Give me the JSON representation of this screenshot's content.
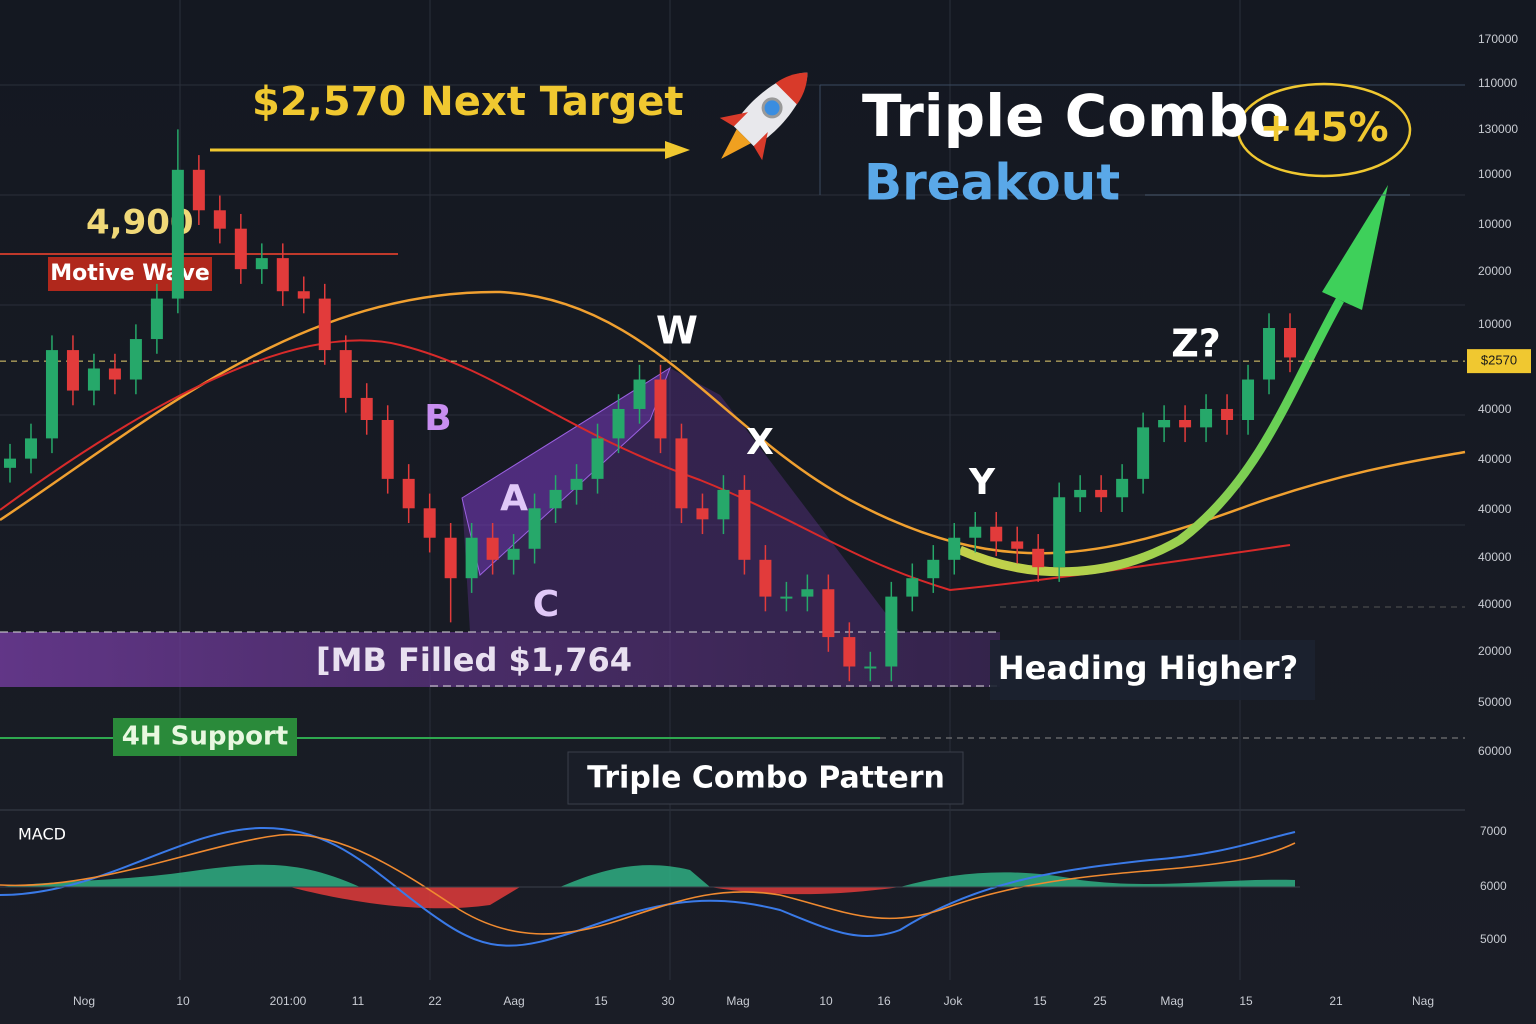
{
  "chart_data": {
    "type": "candlestick",
    "title": "Triple Combo",
    "subtitle": "Breakout",
    "badge": "+45%",
    "annotations": {
      "target": "$2,570 Next Target",
      "level": "4,900",
      "wave": "Motive Wave",
      "w": "W",
      "x": "X",
      "y": "Y",
      "z": "Z?",
      "a": "A",
      "b": "B",
      "c": "C",
      "zone": "[MB Filled $1,764",
      "heading": "Heading Higher?",
      "support": "4H Support",
      "pattern": "Triple Combo Pattern",
      "macd": "MACD"
    },
    "target_line": {
      "value": 2570,
      "label": "$2570"
    },
    "right_axis_labels": [
      "170000",
      "110000",
      "130000",
      "10000",
      "10000",
      "20000",
      "10000",
      "40000",
      "40000",
      "40000",
      "40000",
      "40000",
      "20000",
      "50000",
      "60000"
    ],
    "macd_axis_labels": [
      "7000",
      "6000",
      "5000"
    ],
    "x_labels": [
      "Nog",
      "10",
      "201:00",
      "11",
      "22",
      "Aag",
      "15",
      "30",
      "Mag",
      "10",
      "16",
      "Jok",
      "15",
      "25",
      "Mag",
      "15",
      "21",
      "Nag"
    ],
    "ylim": [
      1350,
      3470
    ],
    "up_color": "#26a86a",
    "down_color": "#e23b3b",
    "open": [
      2280,
      2305,
      2360,
      2600,
      2490,
      2550,
      2520,
      2630,
      2740,
      3090,
      2980,
      2930,
      2820,
      2850,
      2760,
      2740,
      2600,
      2470,
      2410,
      2250,
      2170,
      2090,
      1980,
      2090,
      2030,
      2060,
      2170,
      2220,
      2250,
      2360,
      2440,
      2520,
      2360,
      2170,
      2140,
      2220,
      2030,
      1930,
      1930,
      1950,
      1820,
      1740,
      1740,
      1930,
      1980,
      2030,
      2090,
      2120,
      2080,
      2060,
      2010,
      2200,
      2220,
      2200,
      2250,
      2390,
      2410,
      2390,
      2440,
      2410,
      2520,
      2660
    ],
    "high": [
      2345,
      2400,
      2640,
      2640,
      2590,
      2590,
      2670,
      2780,
      3200,
      3130,
      3020,
      2970,
      2890,
      2890,
      2800,
      2780,
      2640,
      2510,
      2450,
      2290,
      2210,
      2130,
      2130,
      2130,
      2100,
      2210,
      2260,
      2290,
      2400,
      2480,
      2560,
      2560,
      2400,
      2210,
      2260,
      2260,
      2070,
      1970,
      1990,
      1990,
      1860,
      1780,
      1970,
      2020,
      2070,
      2130,
      2160,
      2160,
      2120,
      2100,
      2240,
      2260,
      2260,
      2290,
      2430,
      2450,
      2450,
      2480,
      2480,
      2560,
      2700,
      2700
    ],
    "low": [
      2240,
      2265,
      2320,
      2450,
      2450,
      2480,
      2480,
      2590,
      2700,
      2940,
      2890,
      2780,
      2780,
      2720,
      2700,
      2560,
      2430,
      2370,
      2210,
      2130,
      2050,
      1860,
      1940,
      1990,
      1990,
      2020,
      2130,
      2180,
      2210,
      2320,
      2400,
      2320,
      2130,
      2100,
      2100,
      1990,
      1890,
      1890,
      1890,
      1780,
      1700,
      1700,
      1700,
      1890,
      1940,
      1990,
      2050,
      2040,
      2020,
      1970,
      1970,
      2160,
      2160,
      2160,
      2210,
      2350,
      2350,
      2350,
      2370,
      2370,
      2480,
      2540
    ],
    "close": [
      2305,
      2360,
      2600,
      2490,
      2550,
      2520,
      2630,
      2740,
      3090,
      2980,
      2930,
      2820,
      2850,
      2760,
      2740,
      2600,
      2470,
      2410,
      2250,
      2170,
      2090,
      1980,
      2090,
      2030,
      2060,
      2170,
      2220,
      2250,
      2360,
      2440,
      2520,
      2360,
      2170,
      2140,
      2220,
      2030,
      1930,
      1930,
      1950,
      1820,
      1740,
      1740,
      1930,
      1980,
      2030,
      2090,
      2120,
      2080,
      2060,
      2010,
      2200,
      2220,
      2200,
      2250,
      2390,
      2410,
      2390,
      2440,
      2410,
      2520,
      2660,
      2580
    ]
  }
}
